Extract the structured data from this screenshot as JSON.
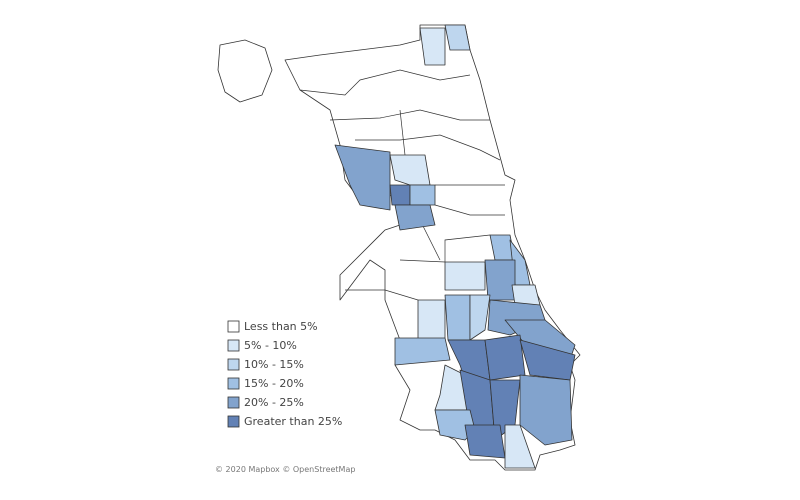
{
  "legend": {
    "items": [
      {
        "label": "Less than 5%",
        "color": "#ffffff"
      },
      {
        "label": "5% - 10%",
        "color": "#d7e7f6"
      },
      {
        "label": "10% - 15%",
        "color": "#bed6ee"
      },
      {
        "label": "15% - 20%",
        "color": "#a0c0e3"
      },
      {
        "label": "20% - 25%",
        "color": "#82a3cd"
      },
      {
        "label": "Greater than 25%",
        "color": "#6281b5"
      }
    ]
  },
  "attribution": "© 2020 Mapbox © OpenStreetMap"
}
